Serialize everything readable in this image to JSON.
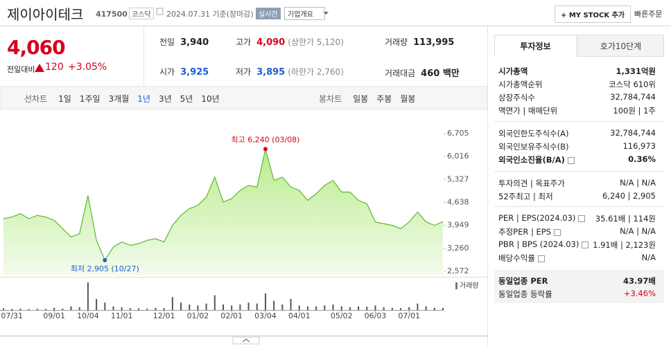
{
  "header": {
    "title": "제이아이테크",
    "code": "417500",
    "market": "코스닥",
    "date": "2024.07.31 기준(장마감)",
    "realtime": "실시간",
    "company_info": "기업개요",
    "mystock": "+ MY STOCK 추가",
    "quick_order": "빠른주문"
  },
  "quote": {
    "price": "4,060",
    "change_label": "전일대비",
    "change": "120",
    "change_pct": "+3.05%",
    "color": "#d6001c",
    "stats": [
      [
        {
          "label": "전일",
          "value": "3,940"
        },
        {
          "label": "고가",
          "value": "4,090",
          "color": "#d6001c",
          "note": "(상한가 5,120)"
        },
        {
          "label": "거래량",
          "value": "113,995"
        }
      ],
      [
        {
          "label": "시가",
          "value": "3,925",
          "color": "#1a5fd1"
        },
        {
          "label": "저가",
          "value": "3,895",
          "color": "#1a5fd1",
          "note": "(하한가 2,760)"
        },
        {
          "label": "거래대금",
          "value": "460 백만"
        }
      ]
    ]
  },
  "tabs": {
    "line_chart": "선차트",
    "periods": [
      "1일",
      "1주일",
      "3개월",
      "1년",
      "3년",
      "5년",
      "10년"
    ],
    "candle_chart": "봉차트",
    "candle_periods": [
      "일봉",
      "주봉",
      "월봉"
    ]
  },
  "chart_data": {
    "type": "area",
    "color": "#5cb82e",
    "categories": [
      null,
      "07/31",
      null,
      null,
      null,
      null,
      "09/01",
      null,
      null,
      null,
      "10/04",
      null,
      null,
      null,
      "11/01",
      null,
      null,
      null,
      null,
      "12/01",
      null,
      null,
      null,
      "01/02",
      null,
      null,
      null,
      "02/01",
      null,
      null,
      null,
      "03/04",
      null,
      null,
      null,
      "04/01",
      null,
      null,
      null,
      null,
      "05/02",
      null,
      null,
      null,
      "06/03",
      null,
      null,
      null,
      "07/01",
      null,
      null,
      null,
      null
    ],
    "values": [
      4150,
      4200,
      4300,
      4150,
      4250,
      4200,
      4100,
      3850,
      3600,
      3700,
      4850,
      3500,
      2905,
      3300,
      3450,
      3350,
      3400,
      3500,
      3550,
      3450,
      3950,
      4250,
      4450,
      4550,
      4800,
      5400,
      4650,
      4750,
      5000,
      5150,
      5100,
      6240,
      5300,
      5400,
      5100,
      5000,
      4700,
      4900,
      5150,
      5300,
      4950,
      4950,
      4700,
      4600,
      4050,
      4000,
      3950,
      3850,
      4050,
      4350,
      4050,
      3950,
      4060
    ],
    "ylim": [
      2447,
      6871
    ],
    "yticks": [
      {
        "value": 2572,
        "label": "2,572"
      },
      {
        "value": 3260,
        "label": "3,260"
      },
      {
        "value": 3949,
        "label": "3,949"
      },
      {
        "value": 4638,
        "label": "4,638"
      },
      {
        "value": 5327,
        "label": "5,327"
      },
      {
        "value": 6016,
        "label": "6,016"
      },
      {
        "value": 6705,
        "label": "6,705"
      }
    ],
    "grid": false,
    "annotations": {
      "high": "최고 6,240 (03/08)",
      "low": "최저 2,905 (10/27)"
    },
    "volume": {
      "name": "거래량",
      "color": "#555555",
      "values": [
        90000,
        60000,
        80000,
        50000,
        70000,
        60000,
        120000,
        80000,
        200000,
        150000,
        1500000,
        600000,
        400000,
        200000,
        150000,
        100000,
        90000,
        80000,
        120000,
        100000,
        700000,
        400000,
        300000,
        250000,
        350000,
        800000,
        300000,
        250000,
        300000,
        400000,
        350000,
        900000,
        500000,
        300000,
        600000,
        250000,
        200000,
        200000,
        250000,
        300000,
        200000,
        150000,
        200000,
        180000,
        250000,
        150000,
        120000,
        100000,
        150000,
        350000,
        200000,
        120000,
        113995
      ]
    }
  },
  "side": {
    "tabs": [
      "투자정보",
      "호가10단계"
    ],
    "groups": [
      [
        {
          "label": "시가총액",
          "value": "1,331억원",
          "bold": true
        },
        {
          "label": "시가총액순위",
          "value": "코스닥 610위"
        },
        {
          "label": "상장주식수",
          "value": "32,784,744"
        },
        {
          "label": "액면가 | 매매단위",
          "value": "100원 | 1주"
        }
      ],
      [
        {
          "label": "외국인한도주식수(A)",
          "value": "32,784,744"
        },
        {
          "label": "외국인보유주식수(B)",
          "value": "116,973"
        },
        {
          "label": "외국인소진율(B/A)",
          "value": "0.36%",
          "bold": true,
          "help": true
        }
      ],
      [
        {
          "label": "투자의견 | 목표주가",
          "value": "N/A | N/A"
        },
        {
          "label": "52주최고 | 최저",
          "value": "6,240 | 2,905"
        }
      ],
      [
        {
          "label": "PER | EPS(2024.03)",
          "value": "35.61배 | 114원",
          "help": true
        },
        {
          "label": "추정PER | EPS",
          "value": "N/A | N/A",
          "help": true
        },
        {
          "label": "PBR | BPS (2024.03)",
          "value": "1.91배 | 2,123원",
          "help": true
        },
        {
          "label": "배당수익률",
          "value": "N/A",
          "help": true
        }
      ],
      [
        {
          "label": "동일업종 PER",
          "value": "43.97배",
          "bold": true
        },
        {
          "label": "동일업종 등락률",
          "value": "+3.46%",
          "color": "#d6001c"
        }
      ]
    ]
  }
}
